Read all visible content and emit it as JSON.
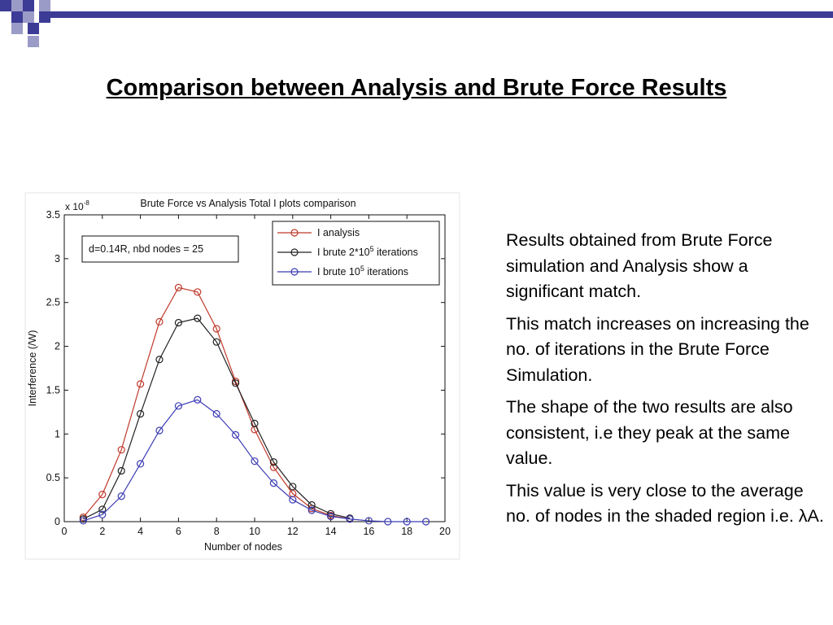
{
  "slide": {
    "title": "Comparison between Analysis and Brute Force Results",
    "bullets": [
      "Results obtained from Brute Force simulation and Analysis show a significant match.",
      "This match increases on increasing the no. of iterations in the Brute Force Simulation.",
      "The shape of the two results are also consistent, i.e they peak at the same value.",
      "This value is very close to the average no. of nodes in the shaded region i.e. λA."
    ],
    "colors": {
      "accent": "#3c3c96",
      "accent_light": "#9b9bc8"
    }
  },
  "chart_data": {
    "type": "line",
    "title": "Brute Force vs Analysis Total I plots comparison",
    "xlabel": "Number of nodes",
    "ylabel": "Interference (/W)",
    "y_multiplier": "x 10",
    "y_multiplier_exp": "-8",
    "xlim": [
      0,
      20
    ],
    "ylim": [
      0,
      3.5
    ],
    "xticks": [
      "0",
      "2",
      "4",
      "6",
      "8",
      "10",
      "12",
      "14",
      "16",
      "18",
      "20"
    ],
    "yticks": [
      "0",
      "0.5",
      "1",
      "1.5",
      "2",
      "2.5",
      "3",
      "3.5"
    ],
    "grid": false,
    "annotation": "d=0.14R, nbd nodes = 25",
    "legend_position": "top-right",
    "series": [
      {
        "name": "I analysis",
        "color": "#c0392b",
        "marker": "circle",
        "x": [
          1,
          2,
          3,
          4,
          5,
          6,
          7,
          8,
          9,
          10,
          11,
          12,
          13,
          14,
          15
        ],
        "y": [
          0.05,
          0.31,
          0.82,
          1.57,
          2.28,
          2.67,
          2.62,
          2.2,
          1.6,
          1.05,
          0.62,
          0.32,
          0.15,
          0.07,
          0.03
        ]
      },
      {
        "name": "I brute 2*10",
        "name_sup": "5",
        "name_suffix": " iterations",
        "color": "#222222",
        "marker": "circle",
        "x": [
          1,
          2,
          3,
          4,
          5,
          6,
          7,
          8,
          9,
          10,
          11,
          12,
          13,
          14,
          15
        ],
        "y": [
          0.03,
          0.14,
          0.58,
          1.23,
          1.85,
          2.27,
          2.32,
          2.05,
          1.58,
          1.12,
          0.68,
          0.4,
          0.19,
          0.09,
          0.04
        ]
      },
      {
        "name": "I brute 10",
        "name_sup": "5",
        "name_suffix": " iterations",
        "color": "#3c3cb4",
        "marker": "circle",
        "x": [
          1,
          2,
          3,
          4,
          5,
          6,
          7,
          8,
          9,
          10,
          11,
          12,
          13,
          14,
          15,
          16,
          17,
          18,
          19
        ],
        "y": [
          0.01,
          0.08,
          0.29,
          0.66,
          1.04,
          1.32,
          1.39,
          1.23,
          0.99,
          0.69,
          0.44,
          0.25,
          0.13,
          0.06,
          0.03,
          0.01,
          0.0,
          0.0,
          0.0
        ]
      }
    ]
  }
}
